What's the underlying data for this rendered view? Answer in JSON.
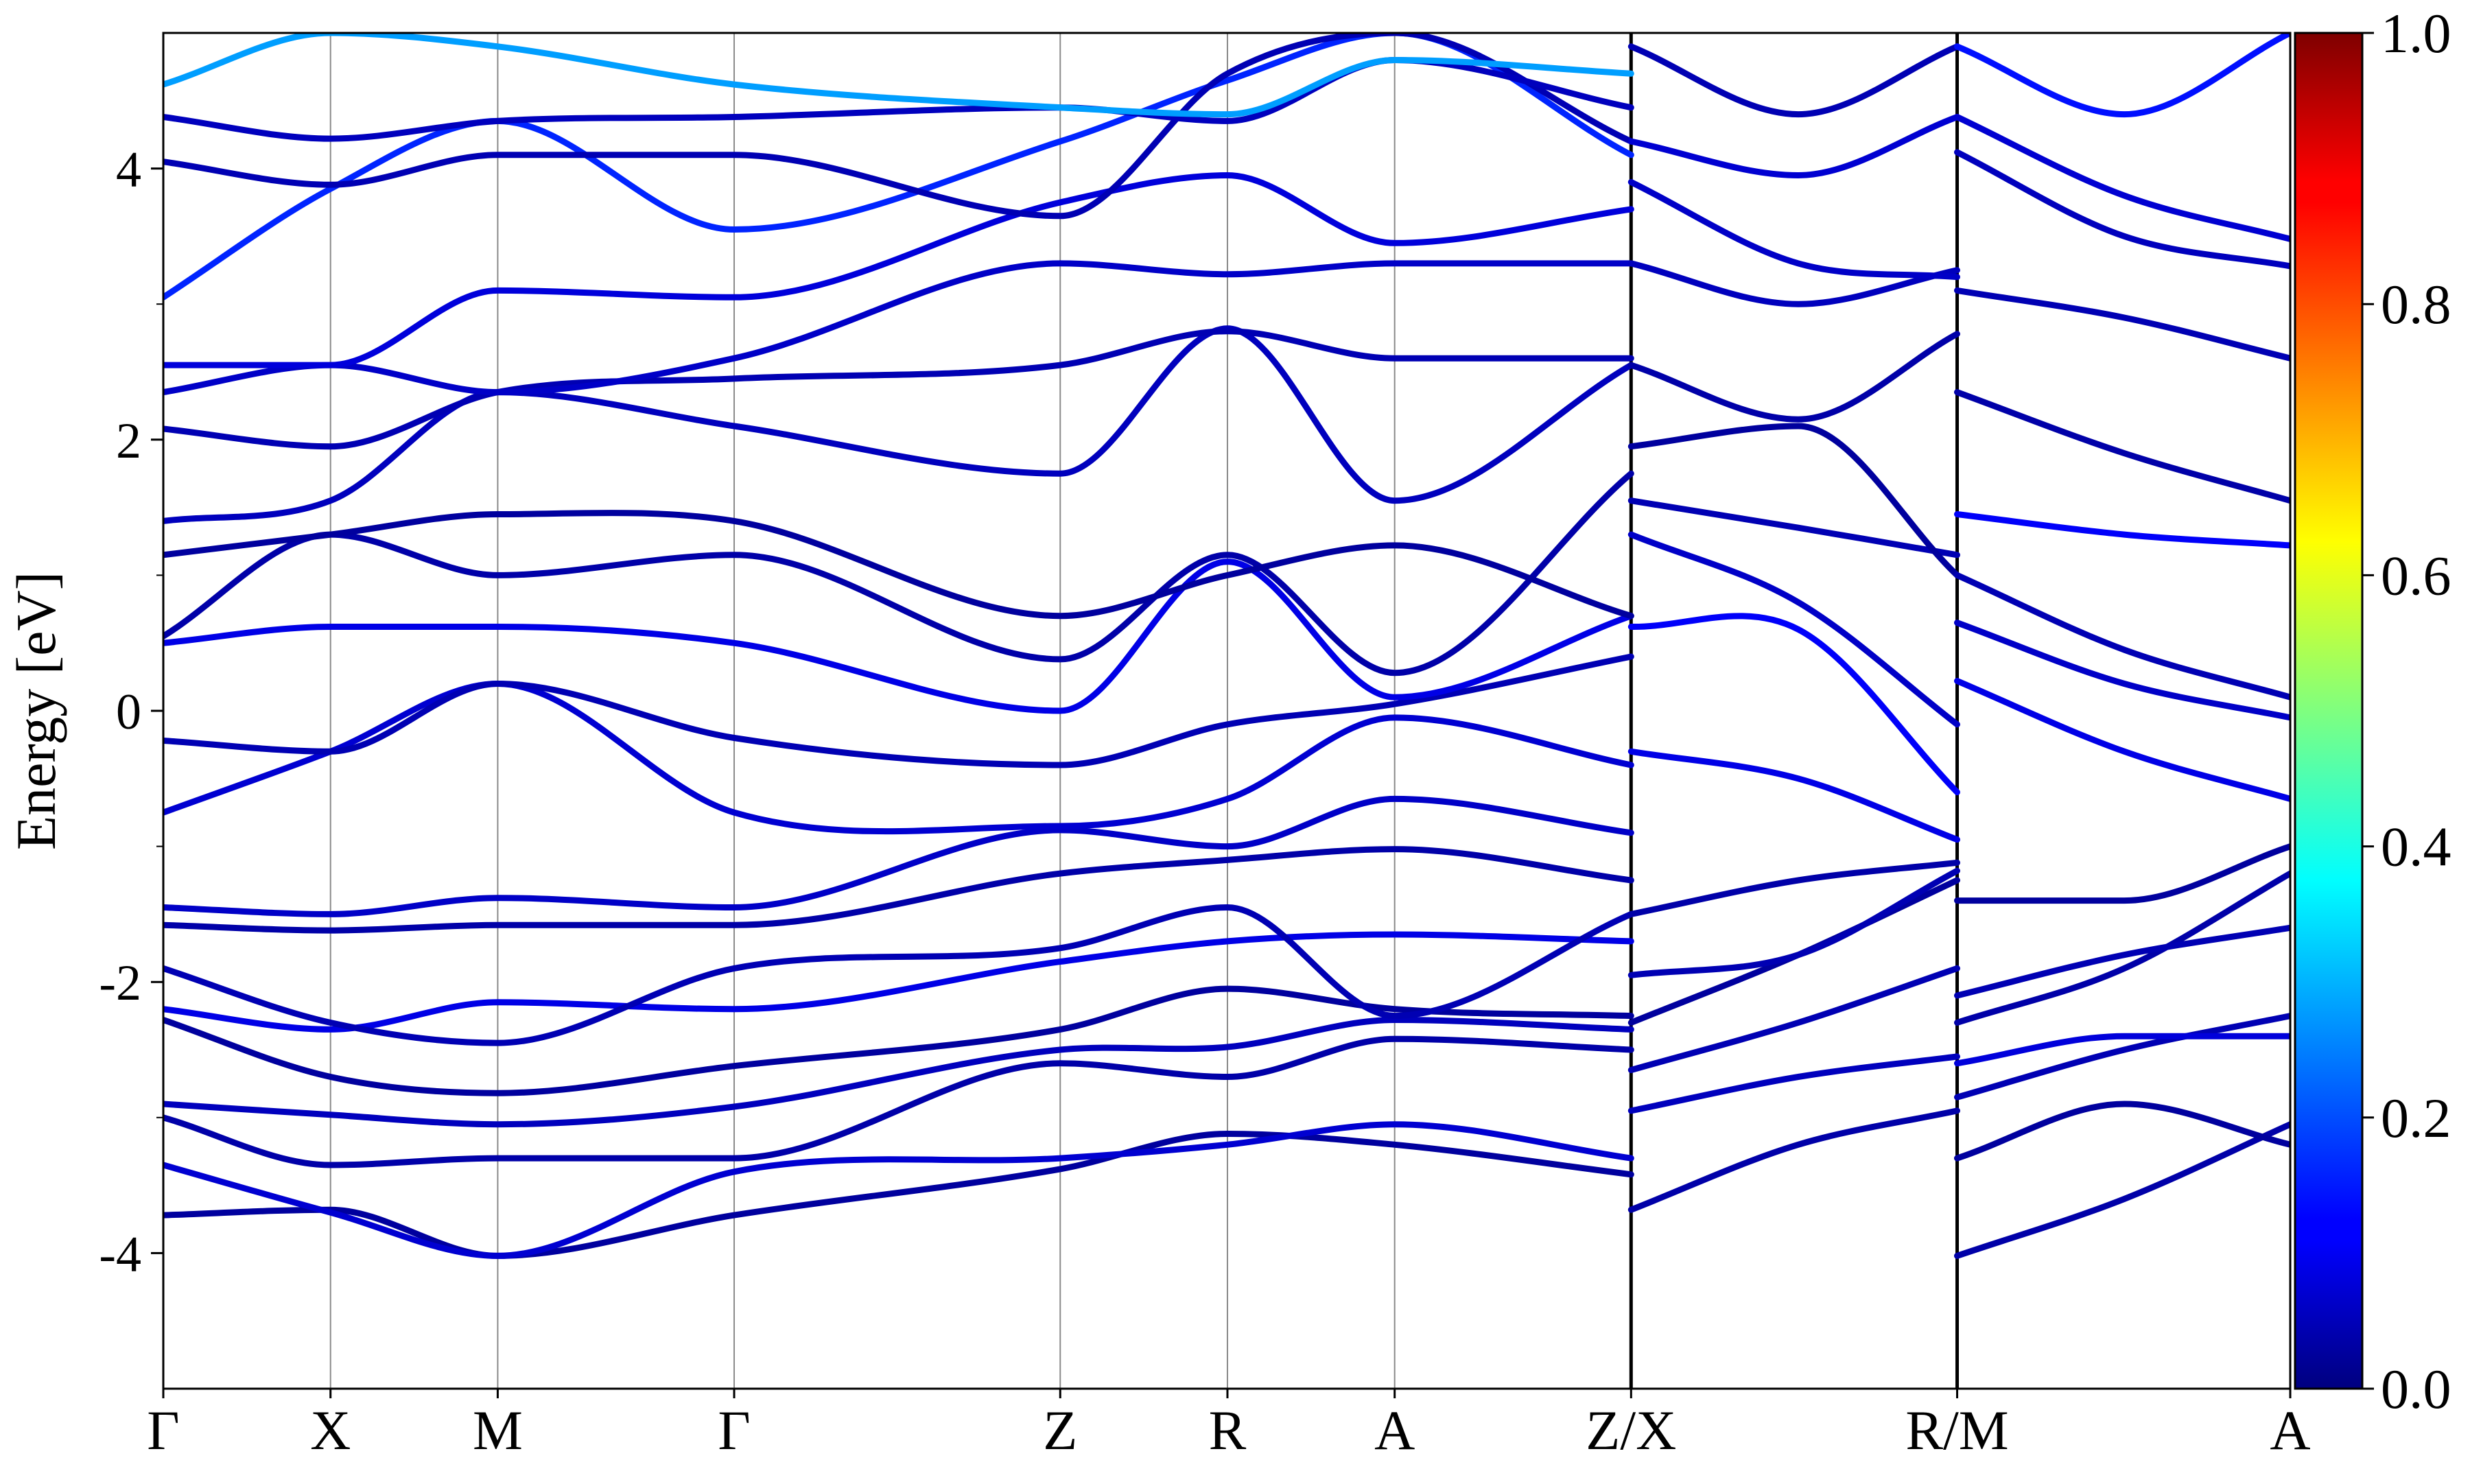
{
  "chart_data": {
    "type": "line",
    "title": "",
    "xlabel": "",
    "ylabel": "Energy [eV]",
    "ylim": [
      -5,
      5
    ],
    "xlim": [
      0,
      12.72
    ],
    "y_ticks": [
      "-4",
      "-2",
      "0",
      "2",
      "4"
    ],
    "y_tick_values": [
      -4,
      -2,
      0,
      2,
      4
    ],
    "y_minor_tick_values": [
      -3,
      -1,
      1,
      3
    ],
    "k_points": [
      {
        "label": "Γ",
        "x": 0
      },
      {
        "label": "X",
        "x": 1
      },
      {
        "label": "M",
        "x": 2
      },
      {
        "label": "Γ",
        "x": 3.414
      },
      {
        "label": "Z",
        "x": 5.364
      },
      {
        "label": "R",
        "x": 6.364
      },
      {
        "label": "A",
        "x": 7.364
      },
      {
        "label": "Z/X",
        "x": 8.778
      },
      {
        "label": "R/M",
        "x": 10.728
      },
      {
        "label": "A",
        "x": 12.72
      }
    ],
    "discontinuities": [
      8.778,
      10.728
    ],
    "grid": "vertical lines at high-symmetry points",
    "colorbar": {
      "colormap": "jet",
      "range": [
        0,
        1
      ],
      "ticks": [
        "0.0",
        "0.2",
        "0.4",
        "0.6",
        "0.8",
        "1.0"
      ],
      "tick_values": [
        0,
        0.2,
        0.4,
        0.6,
        0.8,
        1.0
      ]
    },
    "bands": [
      {
        "weight": 0.03,
        "x": [
          0,
          1,
          2,
          3.414,
          5.364,
          6.364,
          7.364,
          8.778
        ],
        "y": [
          -3.72,
          -3.68,
          -4.02,
          -3.72,
          -3.38,
          -3.12,
          -3.2,
          -3.42
        ]
      },
      {
        "weight": 0.08,
        "x": [
          0,
          1,
          2,
          3.414,
          5.364,
          6.364,
          7.364,
          8.778
        ],
        "y": [
          -3.35,
          -3.7,
          -4.02,
          -3.4,
          -3.3,
          -3.2,
          -3.05,
          -3.3
        ]
      },
      {
        "weight": 0.04,
        "x": [
          0,
          1,
          2,
          3.414,
          5.364,
          6.364,
          7.364,
          8.778
        ],
        "y": [
          -3.0,
          -3.35,
          -3.3,
          -3.3,
          -2.6,
          -2.7,
          -2.42,
          -2.5
        ]
      },
      {
        "weight": 0.06,
        "x": [
          0,
          1,
          2,
          3.414,
          5.364,
          6.364,
          7.364,
          8.778
        ],
        "y": [
          -2.9,
          -2.98,
          -3.05,
          -2.92,
          -2.5,
          -2.48,
          -2.28,
          -2.35
        ]
      },
      {
        "weight": 0.03,
        "x": [
          0,
          1,
          2,
          3.414,
          5.364,
          6.364,
          7.364,
          8.778
        ],
        "y": [
          -2.28,
          -2.7,
          -2.82,
          -2.62,
          -2.35,
          -2.05,
          -2.2,
          -2.25
        ]
      },
      {
        "weight": 0.1,
        "x": [
          0,
          1,
          2,
          3.414,
          5.364,
          6.364,
          7.364,
          8.778
        ],
        "y": [
          -2.2,
          -2.35,
          -2.15,
          -2.2,
          -1.85,
          -1.7,
          -1.65,
          -1.7
        ]
      },
      {
        "weight": 0.05,
        "x": [
          0,
          1,
          2,
          3.414,
          5.364,
          6.364,
          7.364,
          8.778
        ],
        "y": [
          -1.9,
          -2.3,
          -2.45,
          -1.9,
          -1.75,
          -1.45,
          -2.25,
          -1.5
        ]
      },
      {
        "weight": 0.04,
        "x": [
          0,
          1,
          2,
          3.414,
          5.364,
          6.364,
          7.364,
          8.778
        ],
        "y": [
          -1.58,
          -1.62,
          -1.58,
          -1.58,
          -1.2,
          -1.1,
          -1.02,
          -1.25
        ]
      },
      {
        "weight": 0.07,
        "x": [
          0,
          1,
          2,
          3.414,
          5.364,
          6.364,
          7.364,
          8.778
        ],
        "y": [
          -1.45,
          -1.5,
          -1.38,
          -1.45,
          -0.88,
          -1.0,
          -0.65,
          -0.9
        ]
      },
      {
        "weight": 0.08,
        "x": [
          0,
          1,
          2,
          3.414,
          5.364,
          6.364,
          7.364,
          8.778
        ],
        "y": [
          -0.75,
          -0.3,
          0.2,
          -0.75,
          -0.85,
          -0.65,
          -0.05,
          -0.4
        ]
      },
      {
        "weight": 0.05,
        "x": [
          0,
          1,
          2,
          3.414,
          5.364,
          6.364,
          7.364,
          8.778
        ],
        "y": [
          -0.22,
          -0.3,
          0.2,
          -0.2,
          -0.4,
          -0.1,
          0.05,
          0.4
        ]
      },
      {
        "weight": 0.1,
        "x": [
          0,
          1,
          2,
          3.414,
          5.364,
          6.364,
          7.364,
          8.778
        ],
        "y": [
          0.5,
          0.62,
          0.62,
          0.5,
          0.0,
          1.1,
          0.1,
          0.7
        ]
      },
      {
        "weight": 0.04,
        "x": [
          0,
          1,
          2,
          3.414,
          5.364,
          6.364,
          7.364,
          8.778
        ],
        "y": [
          0.55,
          1.3,
          1.0,
          1.15,
          0.38,
          1.15,
          0.28,
          1.75
        ]
      },
      {
        "weight": 0.03,
        "x": [
          0,
          1,
          2,
          3.414,
          5.364,
          6.364,
          7.364,
          8.778
        ],
        "y": [
          1.15,
          1.3,
          1.45,
          1.4,
          0.7,
          1.0,
          1.22,
          0.7
        ]
      },
      {
        "weight": 0.06,
        "x": [
          0,
          1,
          2,
          3.414,
          5.364,
          6.364,
          7.364,
          8.778
        ],
        "y": [
          1.4,
          1.55,
          2.35,
          2.1,
          1.75,
          2.82,
          1.55,
          2.55
        ]
      },
      {
        "weight": 0.05,
        "x": [
          0,
          1,
          2,
          3.414,
          5.364,
          6.364,
          7.364,
          8.778
        ],
        "y": [
          2.08,
          1.95,
          2.35,
          2.45,
          2.55,
          2.8,
          2.6,
          2.6
        ]
      },
      {
        "weight": 0.07,
        "x": [
          0,
          1,
          2,
          3.414,
          5.364,
          6.364,
          7.364,
          8.778
        ],
        "y": [
          2.35,
          2.55,
          2.35,
          2.6,
          3.3,
          3.22,
          3.3,
          3.3
        ]
      },
      {
        "weight": 0.09,
        "x": [
          0,
          1,
          2,
          3.414,
          5.364,
          6.364,
          7.364,
          8.778
        ],
        "y": [
          2.55,
          2.55,
          3.1,
          3.05,
          3.75,
          3.95,
          3.45,
          3.7
        ]
      },
      {
        "weight": 0.16,
        "x": [
          0,
          1,
          2,
          3.414,
          5.364,
          6.364,
          7.364,
          8.778
        ],
        "y": [
          3.05,
          3.85,
          4.35,
          3.55,
          4.2,
          4.65,
          5.0,
          4.1
        ]
      },
      {
        "weight": 0.05,
        "x": [
          0,
          1,
          2,
          3.414,
          5.364,
          6.364,
          7.364,
          8.778
        ],
        "y": [
          4.05,
          3.88,
          4.1,
          4.1,
          3.65,
          4.7,
          5.0,
          4.2
        ]
      },
      {
        "weight": 0.06,
        "x": [
          0,
          1,
          2,
          3.414,
          5.364,
          6.364,
          7.364,
          8.778
        ],
        "y": [
          4.38,
          4.22,
          4.35,
          4.38,
          4.45,
          4.35,
          4.8,
          4.45
        ]
      },
      {
        "weight": 0.28,
        "x": [
          0,
          1,
          2,
          3.414,
          5.364,
          6.364,
          7.364,
          8.778
        ],
        "y": [
          4.62,
          5.0,
          4.9,
          4.62,
          4.45,
          4.4,
          4.8,
          4.7
        ]
      },
      {
        "weight": 0.04,
        "x": [
          8.778,
          9.778,
          10.728
        ],
        "y": [
          -3.68,
          -3.2,
          -2.95
        ]
      },
      {
        "weight": 0.06,
        "x": [
          8.778,
          9.778,
          10.728
        ],
        "y": [
          -2.95,
          -2.7,
          -2.55
        ]
      },
      {
        "weight": 0.05,
        "x": [
          8.778,
          9.778,
          10.728
        ],
        "y": [
          -2.65,
          -2.3,
          -1.9
        ]
      },
      {
        "weight": 0.03,
        "x": [
          8.778,
          9.778,
          10.728
        ],
        "y": [
          -2.3,
          -1.8,
          -1.25
        ]
      },
      {
        "weight": 0.05,
        "x": [
          8.778,
          9.778,
          10.728
        ],
        "y": [
          -1.95,
          -1.8,
          -1.18
        ]
      },
      {
        "weight": 0.04,
        "x": [
          8.778,
          9.778,
          10.728
        ],
        "y": [
          -1.5,
          -1.25,
          -1.12
        ]
      },
      {
        "weight": 0.1,
        "x": [
          8.778,
          9.778,
          10.728
        ],
        "y": [
          -0.3,
          -0.5,
          -0.95
        ]
      },
      {
        "weight": 0.12,
        "x": [
          8.778,
          9.778,
          10.728
        ],
        "y": [
          0.62,
          0.6,
          -0.6
        ]
      },
      {
        "weight": 0.07,
        "x": [
          8.778,
          9.778,
          10.728
        ],
        "y": [
          1.3,
          0.8,
          -0.1
        ]
      },
      {
        "weight": 0.05,
        "x": [
          8.778,
          9.778,
          10.728
        ],
        "y": [
          1.55,
          1.35,
          1.15
        ]
      },
      {
        "weight": 0.03,
        "x": [
          8.778,
          9.778,
          10.728
        ],
        "y": [
          1.95,
          2.1,
          1.0
        ]
      },
      {
        "weight": 0.04,
        "x": [
          8.778,
          9.778,
          10.728
        ],
        "y": [
          2.55,
          2.15,
          2.78
        ]
      },
      {
        "weight": 0.06,
        "x": [
          8.778,
          9.778,
          10.728
        ],
        "y": [
          3.3,
          3.0,
          3.25
        ]
      },
      {
        "weight": 0.07,
        "x": [
          8.778,
          9.778,
          10.728
        ],
        "y": [
          3.9,
          3.3,
          3.2
        ]
      },
      {
        "weight": 0.08,
        "x": [
          8.778,
          9.778,
          10.728
        ],
        "y": [
          4.2,
          3.95,
          4.38
        ]
      },
      {
        "weight": 0.05,
        "x": [
          8.778,
          9.778,
          10.728
        ],
        "y": [
          4.9,
          4.4,
          4.9
        ]
      },
      {
        "weight": 0.04,
        "x": [
          10.728,
          11.728,
          12.72
        ],
        "y": [
          -4.02,
          -3.6,
          -3.05
        ]
      },
      {
        "weight": 0.03,
        "x": [
          10.728,
          11.728,
          12.72
        ],
        "y": [
          -3.3,
          -2.9,
          -3.2
        ]
      },
      {
        "weight": 0.05,
        "x": [
          10.728,
          11.728,
          12.72
        ],
        "y": [
          -2.85,
          -2.5,
          -2.25
        ]
      },
      {
        "weight": 0.09,
        "x": [
          10.728,
          11.728,
          12.72
        ],
        "y": [
          -2.6,
          -2.4,
          -2.4
        ]
      },
      {
        "weight": 0.04,
        "x": [
          10.728,
          11.728,
          12.72
        ],
        "y": [
          -2.3,
          -1.9,
          -1.2
        ]
      },
      {
        "weight": 0.05,
        "x": [
          10.728,
          11.728,
          12.72
        ],
        "y": [
          -2.1,
          -1.8,
          -1.6
        ]
      },
      {
        "weight": 0.03,
        "x": [
          10.728,
          11.728,
          12.72
        ],
        "y": [
          -1.4,
          -1.4,
          -1.0
        ]
      },
      {
        "weight": 0.1,
        "x": [
          10.728,
          11.728,
          12.72
        ],
        "y": [
          0.22,
          -0.3,
          -0.65
        ]
      },
      {
        "weight": 0.07,
        "x": [
          10.728,
          11.728,
          12.72
        ],
        "y": [
          0.65,
          0.2,
          -0.05
        ]
      },
      {
        "weight": 0.05,
        "x": [
          10.728,
          11.728,
          12.72
        ],
        "y": [
          1.0,
          0.45,
          0.1
        ]
      },
      {
        "weight": 0.12,
        "x": [
          10.728,
          11.728,
          12.72
        ],
        "y": [
          1.45,
          1.3,
          1.22
        ]
      },
      {
        "weight": 0.04,
        "x": [
          10.728,
          11.728,
          12.72
        ],
        "y": [
          2.35,
          1.9,
          1.55
        ]
      },
      {
        "weight": 0.05,
        "x": [
          10.728,
          11.728,
          12.72
        ],
        "y": [
          3.1,
          2.9,
          2.6
        ]
      },
      {
        "weight": 0.06,
        "x": [
          10.728,
          11.728,
          12.72
        ],
        "y": [
          4.12,
          3.5,
          3.28
        ]
      },
      {
        "weight": 0.08,
        "x": [
          10.728,
          11.728,
          12.72
        ],
        "y": [
          4.38,
          3.8,
          3.48
        ]
      },
      {
        "weight": 0.14,
        "x": [
          10.728,
          11.728,
          12.72
        ],
        "y": [
          4.9,
          4.4,
          5.0
        ]
      }
    ]
  }
}
